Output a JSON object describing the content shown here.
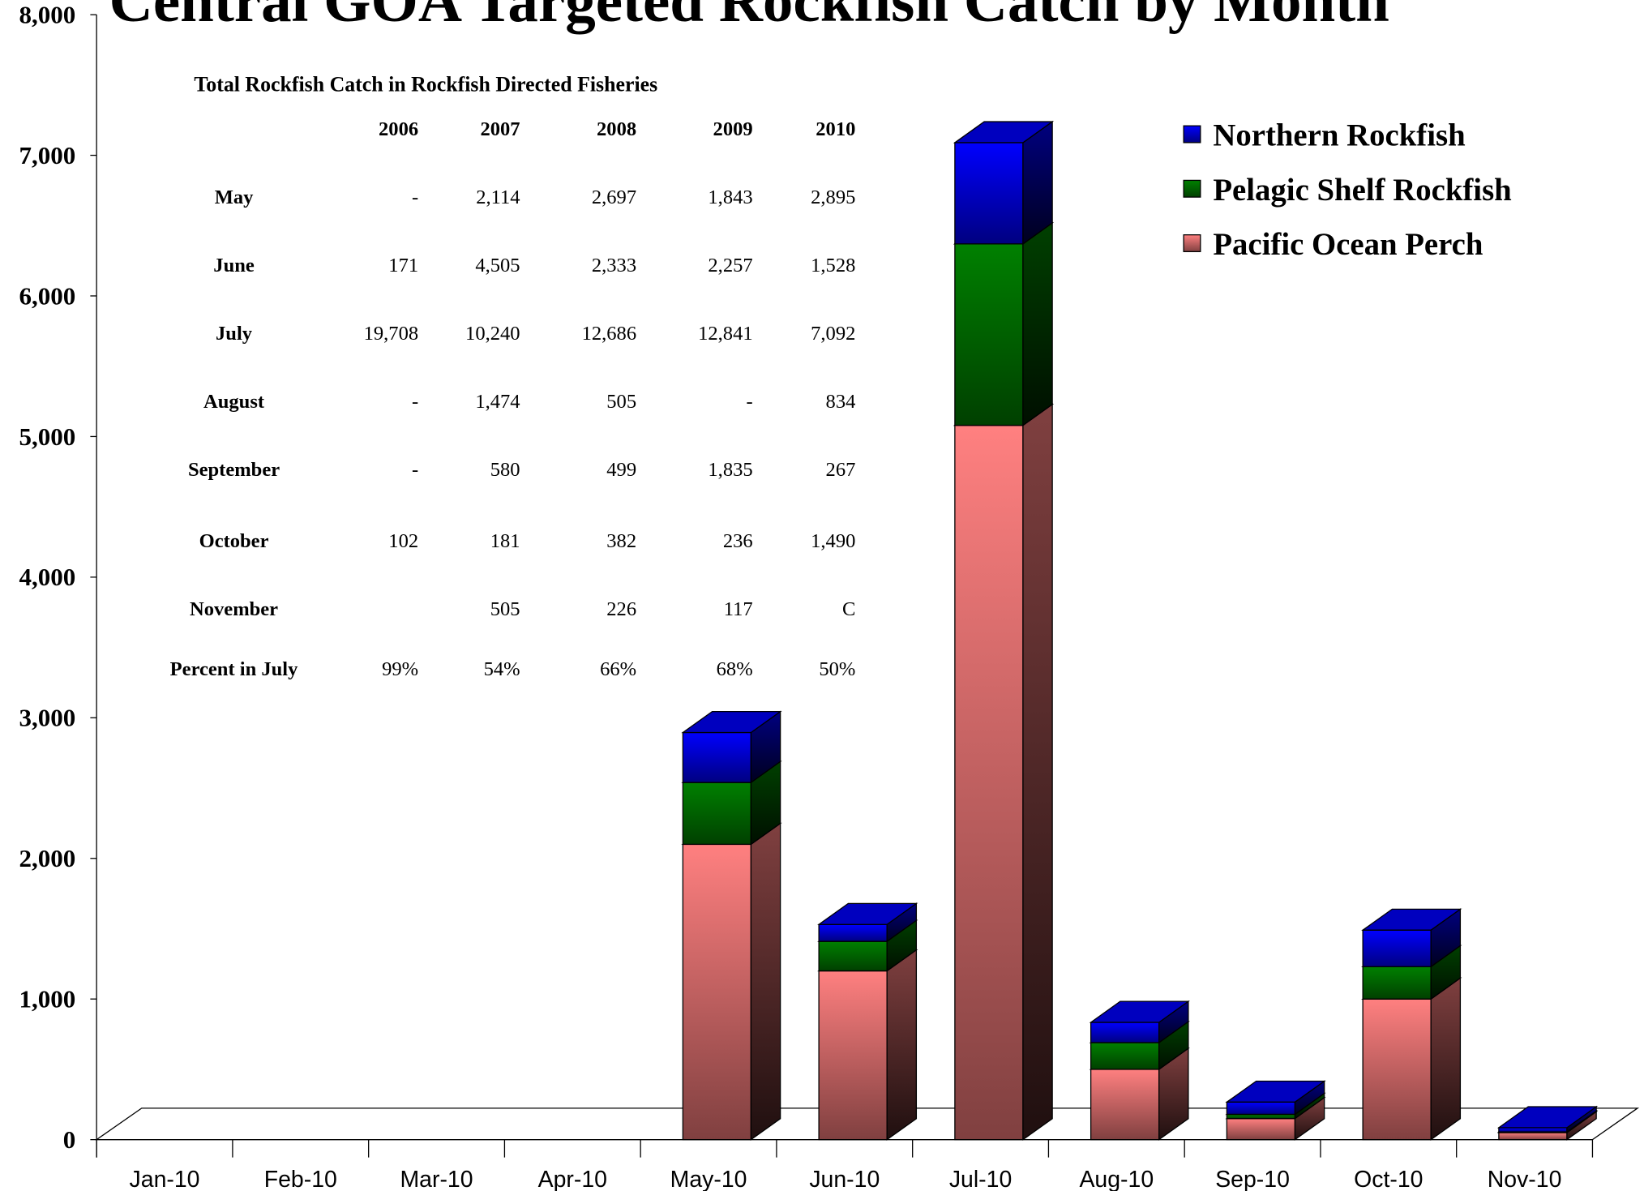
{
  "chart_data": {
    "type": "bar3d_stacked",
    "title": "Central GOA Targeted Rockfish Catch by Month",
    "categories": [
      "Jan-10",
      "Feb-10",
      "Mar-10",
      "Apr-10",
      "May-10",
      "Jun-10",
      "Jul-10",
      "Aug-10",
      "Sep-10",
      "Oct-10",
      "Nov-10"
    ],
    "series": [
      {
        "name": "Pacific Ocean Perch",
        "color": "#ff8080",
        "values": [
          null,
          null,
          null,
          null,
          2100,
          1200,
          5080,
          500,
          150,
          1000,
          50
        ]
      },
      {
        "name": "Pelagic Shelf Rockfish",
        "color": "#008000",
        "values": [
          null,
          null,
          null,
          null,
          440,
          210,
          1290,
          190,
          30,
          230,
          5
        ]
      },
      {
        "name": "Northern Rockfish",
        "color": "#0000ff",
        "values": [
          null,
          null,
          null,
          null,
          355,
          120,
          720,
          144,
          87,
          260,
          30
        ]
      }
    ],
    "ylim": [
      0,
      8000
    ],
    "yticks": [
      0,
      {
        "value": 1000,
        "label": "1,000"
      },
      {
        "value": 2000,
        "label": "2,000"
      },
      {
        "value": 3000,
        "label": "3,000"
      },
      {
        "value": 4000,
        "label": "4,000"
      },
      {
        "value": 5000,
        "label": "5,000"
      },
      {
        "value": 6000,
        "label": "6,000"
      },
      {
        "value": 7000,
        "label": "7,000"
      },
      {
        "value": 8000,
        "label": "8,000"
      }
    ],
    "legend": "top-right",
    "table": {
      "title": "Total Rockfish Catch in Rockfish Directed Fisheries",
      "columns": [
        "2006",
        "2007",
        "2008",
        "2009",
        "2010"
      ],
      "rows": [
        {
          "label": "May",
          "values": [
            "-",
            "2,114",
            "2,697",
            "1,843",
            "2,895"
          ]
        },
        {
          "label": "June",
          "values": [
            "171",
            "4,505",
            "2,333",
            "2,257",
            "1,528"
          ]
        },
        {
          "label": "July",
          "values": [
            "19,708",
            "10,240",
            "12,686",
            "12,841",
            "7,092"
          ]
        },
        {
          "label": "August",
          "values": [
            "-",
            "1,474",
            "505",
            "-",
            "834"
          ]
        },
        {
          "label": "September",
          "values": [
            "-",
            "580",
            "499",
            "1,835",
            "267"
          ]
        },
        {
          "label": "October",
          "values": [
            "102",
            "181",
            "382",
            "236",
            "1,490"
          ]
        },
        {
          "label": "November",
          "values": [
            null,
            "505",
            "226",
            "117",
            "C"
          ]
        },
        {
          "label": "Percent in July",
          "values": [
            "99%",
            "54%",
            "66%",
            "68%",
            "50%"
          ]
        }
      ]
    }
  }
}
